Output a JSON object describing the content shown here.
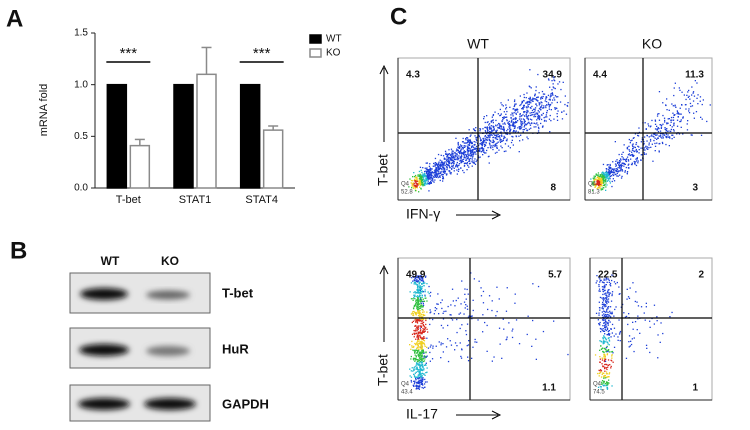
{
  "chart_data": {
    "type": "bar",
    "panel_label": "A",
    "ylabel": "mRNA fold",
    "categories": [
      "T-bet",
      "STAT1",
      "STAT4"
    ],
    "series": [
      {
        "name": "WT",
        "color": "#000000",
        "values": [
          1,
          1,
          1
        ]
      },
      {
        "name": "KO",
        "color": "#ffffff",
        "edgecolor": "#8a8a8a",
        "values": [
          0.41,
          1.1,
          0.56
        ],
        "errors": [
          0.06,
          0.26,
          0.04
        ]
      }
    ],
    "significance": [
      "***",
      null,
      "***"
    ],
    "ylim": [
      0,
      1.5
    ],
    "yticks": [
      {
        "value": 0,
        "label": "0.0"
      },
      {
        "value": 0.5,
        "label": "0.5"
      },
      {
        "value": 1,
        "label": "1.0"
      },
      {
        "value": 1.5,
        "label": "1.5"
      }
    ]
  },
  "panel_b": {
    "label": "B",
    "columns": [
      "WT",
      "KO"
    ],
    "bands": [
      "T-bet",
      "HuR",
      "GAPDH"
    ]
  },
  "panel_c": {
    "label": "C",
    "columns": [
      "WT",
      "KO"
    ],
    "gate_name": "Q4",
    "rows": [
      {
        "y_label": "T-bet",
        "x_label": "IFN-γ",
        "plots": [
          {
            "ul": "4.3",
            "ur": "34.9",
            "ll": "52.8",
            "lr": "8"
          },
          {
            "ul": "4.4",
            "ur": "11.3",
            "ll": "81.3",
            "lr": "3"
          }
        ]
      },
      {
        "y_label": "T-bet",
        "x_label": "IL-17",
        "plots": [
          {
            "ul": "49.9",
            "ur": "5.7",
            "ll": "43.4",
            "lr": "1.1"
          },
          {
            "ul": "22.5",
            "ur": "2",
            "ll": "74.5",
            "lr": "1"
          }
        ]
      }
    ]
  }
}
